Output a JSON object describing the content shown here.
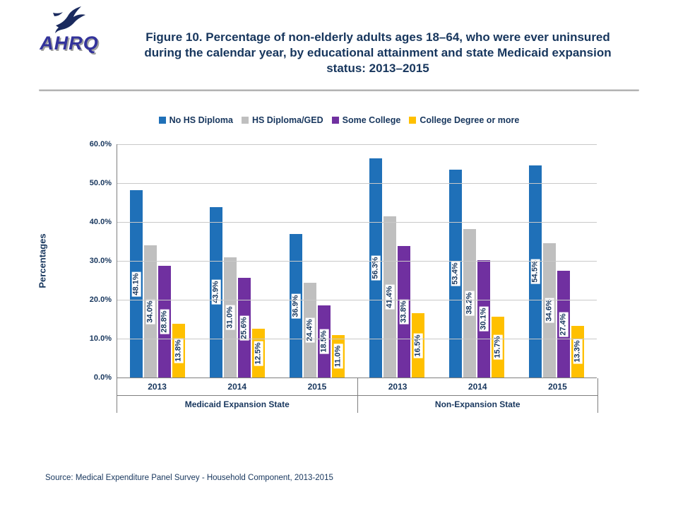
{
  "logo": {
    "text": "AHRQ"
  },
  "title": "Figure 10. Percentage of non-elderly adults ages 18–64, who were ever uninsured during the calendar year, by educational attainment and state Medicaid expansion status: 2013–2015",
  "source": "Source:  Medical Expenditure Panel Survey  -  Household Component, 2013-2015",
  "chart_data": {
    "type": "bar",
    "title": "Percentage of non-elderly adults ages 18–64, who were ever uninsured during the calendar year, by educational attainment and state Medicaid expansion status: 2013–2015",
    "ylabel": "Percentages",
    "ylim": [
      0,
      60
    ],
    "ytick_step": 10,
    "ytick_suffix": "%",
    "grid": true,
    "legend_position": "top",
    "groups": [
      {
        "label": "Medicaid Expansion State",
        "categories": [
          "2013",
          "2014",
          "2015"
        ]
      },
      {
        "label": "Non-Expansion State",
        "categories": [
          "2013",
          "2014",
          "2015"
        ]
      }
    ],
    "series": [
      {
        "name": "No HS Diploma",
        "color": "#1f70b8",
        "values": [
          48.1,
          43.9,
          36.9,
          56.3,
          53.4,
          54.5
        ]
      },
      {
        "name": "HS Diploma/GED",
        "color": "#bfbfbf",
        "values": [
          34.0,
          31.0,
          24.4,
          41.4,
          38.2,
          34.6
        ]
      },
      {
        "name": "Some College",
        "color": "#7030a0",
        "values": [
          28.8,
          25.6,
          18.5,
          33.8,
          30.1,
          27.4
        ]
      },
      {
        "name": "College Degree or more",
        "color": "#ffc000",
        "values": [
          13.8,
          12.5,
          11.0,
          16.5,
          15.7,
          13.3
        ]
      }
    ]
  }
}
